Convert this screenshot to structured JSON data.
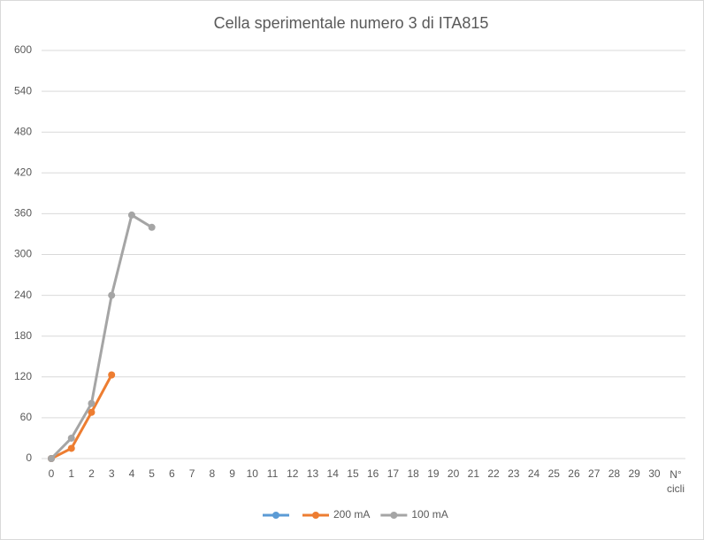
{
  "chart_data": {
    "type": "line",
    "title": "Cella sperimentale numero 3  di ITA815",
    "xlabel": "N° cicli",
    "categories": [
      0,
      1,
      2,
      3,
      4,
      5,
      6,
      7,
      8,
      9,
      10,
      11,
      12,
      13,
      14,
      15,
      16,
      17,
      18,
      19,
      20,
      21,
      22,
      23,
      24,
      25,
      26,
      27,
      28,
      29,
      30
    ],
    "series": [
      {
        "color": "#5b9bd5",
        "values": [
          0,
          null,
          null,
          null,
          null,
          null,
          null,
          null,
          null,
          null,
          null,
          null,
          null,
          null,
          null,
          null,
          null,
          null,
          null,
          null,
          null,
          null,
          null,
          null,
          null,
          null,
          null,
          null,
          null,
          null,
          null
        ]
      },
      {
        "name": "200 mA",
        "color": "#ed7d31",
        "values": [
          0,
          15,
          68,
          123,
          null,
          null,
          null,
          null,
          null,
          null,
          null,
          null,
          null,
          null,
          null,
          null,
          null,
          null,
          null,
          null,
          null,
          null,
          null,
          null,
          null,
          null,
          null,
          null,
          null,
          null,
          null
        ]
      },
      {
        "name": "100 mA",
        "color": "#a5a5a5",
        "values": [
          0,
          30,
          81,
          240,
          358,
          340,
          null,
          null,
          null,
          null,
          null,
          null,
          null,
          null,
          null,
          null,
          null,
          null,
          null,
          null,
          null,
          null,
          null,
          null,
          null,
          null,
          null,
          null,
          null,
          null,
          null
        ]
      }
    ],
    "ylim": [
      0,
      600
    ],
    "yticks": [
      0,
      60,
      120,
      180,
      240,
      300,
      360,
      420,
      480,
      540,
      600
    ],
    "grid": true,
    "legend": "bottom"
  }
}
